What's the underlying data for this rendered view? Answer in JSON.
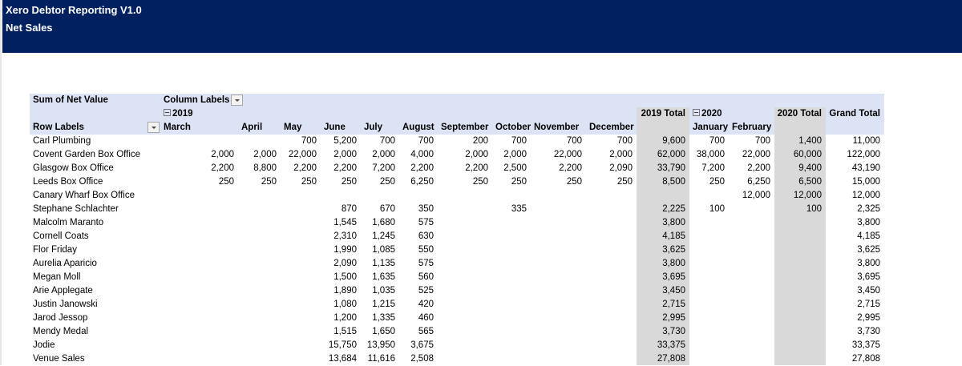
{
  "header": {
    "title": "Xero Debtor Reporting V1.0",
    "subtitle": "Net Sales"
  },
  "pivot": {
    "value_label": "Sum of Net Value",
    "column_labels": "Column Labels",
    "row_labels": "Row Labels",
    "years": [
      "2019",
      "2020"
    ],
    "columns": [
      {
        "label": "March",
        "year": 0
      },
      {
        "label": "April"
      },
      {
        "label": "May"
      },
      {
        "label": "June"
      },
      {
        "label": "July"
      },
      {
        "label": "August"
      },
      {
        "label": "September"
      },
      {
        "label": "October"
      },
      {
        "label": "November"
      },
      {
        "label": "December"
      },
      {
        "label": "2019 Total",
        "total": true
      },
      {
        "label": "January",
        "year": 1
      },
      {
        "label": "February"
      },
      {
        "label": "2020 Total",
        "total": true
      },
      {
        "label": "Grand Total",
        "grand": true
      }
    ],
    "rows": [
      {
        "label": "Carl Plumbing",
        "cells": [
          null,
          null,
          "700",
          "5,200",
          "700",
          "700",
          "200",
          "700",
          "700",
          "700",
          "9,600",
          "700",
          "700",
          "1,400",
          "11,000"
        ]
      },
      {
        "label": "Covent Garden Box Office",
        "cells": [
          "2,000",
          "2,000",
          "22,000",
          "2,000",
          "2,000",
          "4,000",
          "2,000",
          "2,000",
          "22,000",
          "2,000",
          "62,000",
          "38,000",
          "22,000",
          "60,000",
          "122,000"
        ]
      },
      {
        "label": "Glasgow Box Office",
        "cells": [
          "2,200",
          "8,800",
          "2,200",
          "2,200",
          "7,200",
          "2,200",
          "2,200",
          "2,500",
          "2,200",
          "2,090",
          "33,790",
          "7,200",
          "2,200",
          "9,400",
          "43,190"
        ]
      },
      {
        "label": "Leeds Box Office",
        "cells": [
          "250",
          "250",
          "250",
          "250",
          "250",
          "6,250",
          "250",
          "250",
          "250",
          "250",
          "8,500",
          "250",
          "6,250",
          "6,500",
          "15,000"
        ]
      },
      {
        "label": "Canary Wharf Box Office",
        "cells": [
          null,
          null,
          null,
          null,
          null,
          null,
          null,
          null,
          null,
          null,
          null,
          null,
          "12,000",
          "12,000",
          "12,000"
        ]
      },
      {
        "label": "Stephane Schlachter",
        "cells": [
          null,
          null,
          null,
          "870",
          "670",
          "350",
          null,
          "335",
          null,
          null,
          "2,225",
          "100",
          null,
          "100",
          "2,325"
        ]
      },
      {
        "label": "Malcolm Maranto",
        "cells": [
          null,
          null,
          null,
          "1,545",
          "1,680",
          "575",
          null,
          null,
          null,
          null,
          "3,800",
          null,
          null,
          null,
          "3,800"
        ]
      },
      {
        "label": "Cornell Coats",
        "cells": [
          null,
          null,
          null,
          "2,310",
          "1,245",
          "630",
          null,
          null,
          null,
          null,
          "4,185",
          null,
          null,
          null,
          "4,185"
        ]
      },
      {
        "label": "Flor Friday",
        "cells": [
          null,
          null,
          null,
          "1,990",
          "1,085",
          "550",
          null,
          null,
          null,
          null,
          "3,625",
          null,
          null,
          null,
          "3,625"
        ]
      },
      {
        "label": "Aurelia Aparicio",
        "cells": [
          null,
          null,
          null,
          "2,090",
          "1,135",
          "575",
          null,
          null,
          null,
          null,
          "3,800",
          null,
          null,
          null,
          "3,800"
        ]
      },
      {
        "label": "Megan Moll",
        "cells": [
          null,
          null,
          null,
          "1,500",
          "1,635",
          "560",
          null,
          null,
          null,
          null,
          "3,695",
          null,
          null,
          null,
          "3,695"
        ]
      },
      {
        "label": "Arie Applegate",
        "cells": [
          null,
          null,
          null,
          "1,890",
          "1,035",
          "525",
          null,
          null,
          null,
          null,
          "3,450",
          null,
          null,
          null,
          "3,450"
        ]
      },
      {
        "label": "Justin Janowski",
        "cells": [
          null,
          null,
          null,
          "1,080",
          "1,215",
          "420",
          null,
          null,
          null,
          null,
          "2,715",
          null,
          null,
          null,
          "2,715"
        ]
      },
      {
        "label": "Jarod Jessop",
        "cells": [
          null,
          null,
          null,
          "1,200",
          "1,335",
          "460",
          null,
          null,
          null,
          null,
          "2,995",
          null,
          null,
          null,
          "2,995"
        ]
      },
      {
        "label": "Mendy Medal",
        "cells": [
          null,
          null,
          null,
          "1,515",
          "1,650",
          "565",
          null,
          null,
          null,
          null,
          "3,730",
          null,
          null,
          null,
          "3,730"
        ]
      },
      {
        "label": "Jodie",
        "cells": [
          null,
          null,
          null,
          "15,750",
          "13,950",
          "3,675",
          null,
          null,
          null,
          null,
          "33,375",
          null,
          null,
          null,
          "33,375"
        ]
      },
      {
        "label": "Venue Sales",
        "cells": [
          null,
          null,
          null,
          "13,684",
          "11,616",
          "2,508",
          null,
          null,
          null,
          null,
          "27,808",
          null,
          null,
          null,
          "27,808"
        ]
      }
    ]
  }
}
